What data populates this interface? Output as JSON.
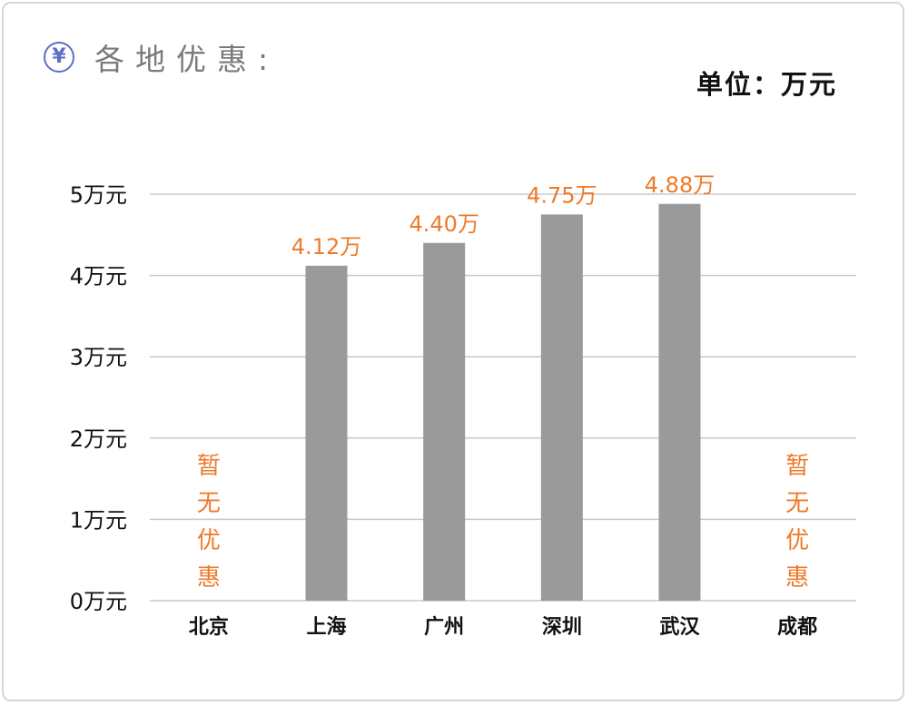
{
  "header": {
    "icon": "yen-circle-icon",
    "title": "各地优惠:"
  },
  "unit_label": "单位：万元",
  "colors": {
    "bar": "#9a9a9a",
    "label": "#ee7a2a",
    "grid": "#c8c8c8",
    "icon": "#5b6fc6"
  },
  "chart_data": {
    "type": "bar",
    "categories": [
      "北京",
      "上海",
      "广州",
      "深圳",
      "武汉",
      "成都"
    ],
    "values": [
      null,
      4.12,
      4.4,
      4.75,
      4.88,
      null
    ],
    "data_labels": [
      "",
      "4.12万",
      "4.40万",
      "4.75万",
      "4.88万",
      ""
    ],
    "no_discount_label": [
      "暂",
      "无",
      "优",
      "惠"
    ],
    "y_ticks": [
      0,
      1,
      2,
      3,
      4,
      5
    ],
    "y_tick_labels": [
      "0万元",
      "1万元",
      "2万元",
      "3万元",
      "4万元",
      "5万元"
    ],
    "ylim": [
      0,
      5
    ],
    "grid": true
  }
}
